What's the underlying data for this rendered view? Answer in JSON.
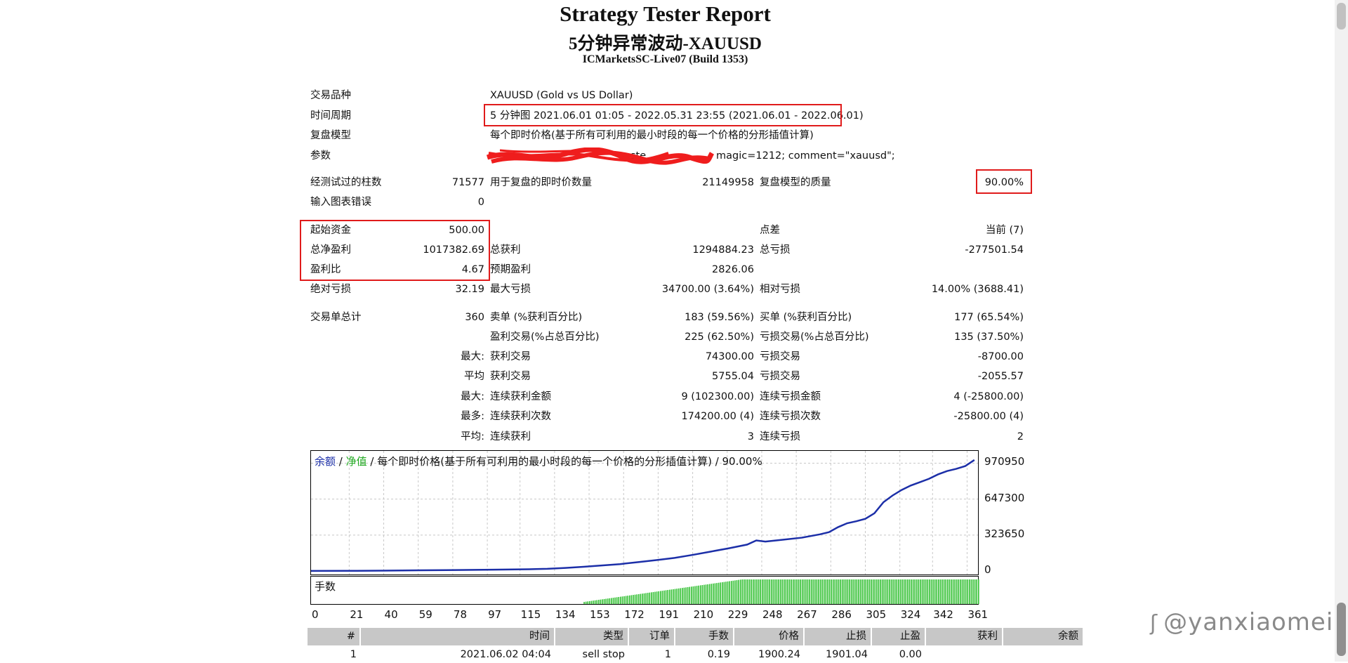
{
  "report": {
    "title": "Strategy Tester Report",
    "subtitle": "5分钟异常波动-XAUUSD",
    "server": "ICMarketsSC-Live07 (Build 1353)"
  },
  "settings": {
    "symbol_label": "交易品种",
    "symbol_value": "XAUUSD (Gold vs US Dollar)",
    "period_label": "时间周期",
    "period_value": "5 分钟图 2021.06.01 01:05 - 2022.05.31 23:55 (2021.06.01 - 2022.06.01)",
    "model_label": "复盘模型",
    "model_value": "每个即时价格(基于所有可利用的最小时段的每一个价格的分形插值计算)",
    "params_label": "参数",
    "params_visible_1": "ste",
    "params_visible_2": "magic=1212; comment=\"xauusd\";"
  },
  "bars": {
    "bars_label": "经测试过的柱数",
    "bars_value": "71577",
    "ticks_label": "用于复盘的即时价数量",
    "ticks_value": "21149958",
    "quality_label": "复盘模型的质量",
    "quality_value": "90.00%",
    "errors_label": "输入图表错误",
    "errors_value": "0"
  },
  "summary": {
    "deposit_label": "起始资金",
    "deposit_value": "500.00",
    "spread_label": "点差",
    "spread_value": "当前 (7)",
    "net_label": "总净盈利",
    "net_value": "1017382.69",
    "gross_profit_label": "总获利",
    "gross_profit_value": "1294884.23",
    "gross_loss_label": "总亏损",
    "gross_loss_value": "-277501.54",
    "pf_label": "盈利比",
    "pf_value": "4.67",
    "expected_label": "预期盈利",
    "expected_value": "2826.06",
    "abs_dd_label": "绝对亏损",
    "abs_dd_value": "32.19",
    "max_dd_label": "最大亏损",
    "max_dd_value": "34700.00 (3.64%)",
    "rel_dd_label": "相对亏损",
    "rel_dd_value": "14.00% (3688.41)"
  },
  "trades": {
    "total_label": "交易单总计",
    "total_value": "360",
    "short_label": "卖单 (%获利百分比)",
    "short_value": "183 (59.56%)",
    "long_label": "买单 (%获利百分比)",
    "long_value": "177 (65.54%)",
    "win_label": "盈利交易(%占总百分比)",
    "win_value": "225 (62.50%)",
    "loss_label": "亏损交易(%占总百分比)",
    "loss_value": "135 (37.50%)",
    "largest_prefix": "最大:",
    "largest_win_label": "获利交易",
    "largest_win_value": "74300.00",
    "largest_loss_label": "亏损交易",
    "largest_loss_value": "-8700.00",
    "avg_prefix": "平均",
    "avg_win_label": "获利交易",
    "avg_win_value": "5755.04",
    "avg_loss_label": "亏损交易",
    "avg_loss_value": "-2055.57",
    "max_cons_prefix": "最大:",
    "max_cons_win_label": "连续获利金额",
    "max_cons_win_value": "9 (102300.00)",
    "max_cons_loss_label": "连续亏损金额",
    "max_cons_loss_value": "4 (-25800.00)",
    "most_prefix": "最多:",
    "most_win_label": "连续获利次数",
    "most_win_value": "174200.00 (4)",
    "most_loss_label": "连续亏损次数",
    "most_loss_value": "-25800.00 (4)",
    "avg_cons_prefix": "平均:",
    "avg_cons_win_label": "连续获利",
    "avg_cons_win_value": "3",
    "avg_cons_loss_label": "连续亏损",
    "avg_cons_loss_value": "2"
  },
  "chart_data": {
    "type": "line",
    "legend_balance": "余额",
    "legend_sep": " / ",
    "legend_equity": "净值",
    "legend_rest": " / 每个即时价格(基于所有可利用的最小时段的每一个价格的分形插值计算) / 90.00%",
    "ylim": [
      0,
      1050000
    ],
    "yticks": [
      "970950",
      "647300",
      "323650",
      "0"
    ],
    "ytick_values": [
      970950,
      647300,
      323650,
      0
    ],
    "xlim": [
      0,
      367
    ],
    "xticks": [
      "0",
      "21",
      "40",
      "59",
      "78",
      "97",
      "115",
      "134",
      "153",
      "172",
      "191",
      "210",
      "229",
      "248",
      "267",
      "286",
      "305",
      "324",
      "342",
      "361"
    ],
    "xtick_values": [
      0,
      21,
      40,
      59,
      78,
      97,
      115,
      134,
      153,
      172,
      191,
      210,
      229,
      248,
      267,
      286,
      305,
      324,
      342,
      361
    ],
    "series": [
      {
        "name": "余额",
        "color": "#1c2fa8",
        "x": [
          0,
          20,
          40,
          60,
          80,
          100,
          120,
          130,
          140,
          150,
          160,
          170,
          180,
          190,
          200,
          210,
          220,
          230,
          240,
          245,
          250,
          260,
          270,
          280,
          285,
          290,
          295,
          300,
          305,
          310,
          315,
          320,
          325,
          330,
          335,
          340,
          345,
          350,
          355,
          360,
          365
        ],
        "y": [
          500,
          1500,
          3000,
          6000,
          9000,
          12000,
          16000,
          20000,
          28000,
          38000,
          50000,
          62000,
          80000,
          98000,
          118000,
          145000,
          175000,
          205000,
          238000,
          275000,
          265000,
          282000,
          300000,
          330000,
          350000,
          395000,
          430000,
          448000,
          470000,
          520000,
          620000,
          680000,
          730000,
          770000,
          800000,
          830000,
          870000,
          900000,
          920000,
          945000,
          1000000
        ]
      }
    ],
    "volume_label": "手数",
    "volume_color": "#2fbf2f",
    "volume_start": 150,
    "volume_end": 367
  },
  "table": {
    "headers": [
      "#",
      "时间",
      "类型",
      "订单",
      "手数",
      "价格",
      "止损",
      "止盈",
      "获利",
      "余额"
    ],
    "row1": [
      "1",
      "2021.06.02 04:04",
      "sell stop",
      "1",
      "0.19",
      "1900.24",
      "1901.04",
      "0.00",
      "",
      ""
    ]
  },
  "watermark": "@yanxiaomei",
  "watermark_icon": "zhihu-icon"
}
